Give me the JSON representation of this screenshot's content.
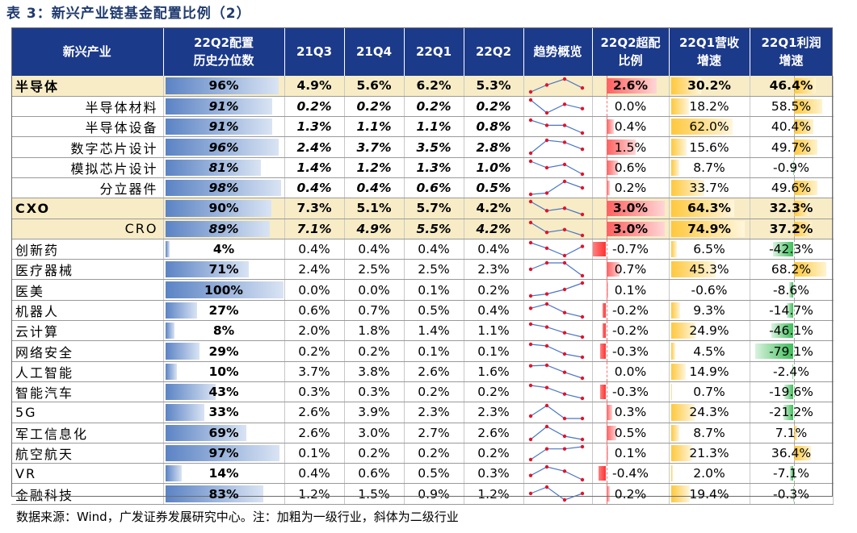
{
  "title": "表 3：新兴产业链基金配置比例（2）",
  "note": "数据来源：Wind，广发证券发展研究中心。注：加粗为一级行业，斜体为二级行业",
  "colors": {
    "header": "#1c3a8a",
    "highlight": "#f7ecc6",
    "pct_bar": "#5b83c4",
    "neg_bar": "#ff4d4d",
    "rev_bar": "#ffc83d",
    "profit_neg": "#3fbe5a",
    "line": "#4a76c8",
    "marker": "#e3132a"
  },
  "headers": {
    "industry": "新兴产业",
    "pct_line1": "22Q2配置",
    "pct_line2": "历史分位数",
    "q1": "21Q3",
    "q2": "21Q4",
    "q3": "22Q1",
    "q4": "22Q2",
    "trend": "趋势概览",
    "over_line1": "22Q2超配",
    "over_line2": "比例",
    "rev_line1": "22Q1营收",
    "rev_line2": "增速",
    "profit_line1": "22Q1利润",
    "profit_line2": "增速"
  },
  "rows": [
    {
      "name": "半导体",
      "level": 1,
      "hl": true,
      "pct": "96%",
      "pctv": 96,
      "q": [
        "4.9%",
        "5.6%",
        "6.2%",
        "5.3%"
      ],
      "qv": [
        4.9,
        5.6,
        6.2,
        5.3
      ],
      "over": "2.6%",
      "overv": 2.6,
      "rev": "30.2%",
      "revv": 30.2,
      "profit": "46.4%",
      "profitv": 46.4
    },
    {
      "name": "半导体材料",
      "level": 2,
      "hl": false,
      "pct": "91%",
      "pctv": 91,
      "q": [
        "0.2%",
        "0.2%",
        "0.2%",
        "0.2%"
      ],
      "qv": [
        0.24,
        0.18,
        0.22,
        0.2
      ],
      "over": "0.0%",
      "overv": 0.0,
      "rev": "18.2%",
      "revv": 18.2,
      "profit": "58.5%",
      "profitv": 58.5
    },
    {
      "name": "半导体设备",
      "level": 2,
      "hl": false,
      "pct": "91%",
      "pctv": 91,
      "q": [
        "1.3%",
        "1.1%",
        "1.1%",
        "0.8%"
      ],
      "qv": [
        1.3,
        1.1,
        1.1,
        0.8
      ],
      "over": "0.4%",
      "overv": 0.4,
      "rev": "62.0%",
      "revv": 62.0,
      "profit": "40.4%",
      "profitv": 40.4
    },
    {
      "name": "数字芯片设计",
      "level": 2,
      "hl": false,
      "pct": "96%",
      "pctv": 96,
      "q": [
        "2.4%",
        "3.7%",
        "3.5%",
        "2.8%"
      ],
      "qv": [
        2.4,
        3.7,
        3.5,
        2.8
      ],
      "over": "1.5%",
      "overv": 1.5,
      "rev": "15.6%",
      "revv": 15.6,
      "profit": "49.7%",
      "profitv": 49.7
    },
    {
      "name": "模拟芯片设计",
      "level": 2,
      "hl": false,
      "pct": "81%",
      "pctv": 81,
      "q": [
        "1.4%",
        "1.2%",
        "1.3%",
        "1.0%"
      ],
      "qv": [
        1.4,
        1.2,
        1.3,
        1.0
      ],
      "over": "0.6%",
      "overv": 0.6,
      "rev": "8.7%",
      "revv": 8.7,
      "profit": "-0.9%",
      "profitv": -0.9
    },
    {
      "name": "分立器件",
      "level": 2,
      "hl": false,
      "pct": "98%",
      "pctv": 98,
      "q": [
        "0.4%",
        "0.4%",
        "0.6%",
        "0.5%"
      ],
      "qv": [
        0.4,
        0.42,
        0.6,
        0.5
      ],
      "over": "0.2%",
      "overv": 0.2,
      "rev": "33.7%",
      "revv": 33.7,
      "profit": "49.6%",
      "profitv": 49.6
    },
    {
      "name": "CXO",
      "level": 1,
      "hl": true,
      "pct": "90%",
      "pctv": 90,
      "q": [
        "7.3%",
        "5.1%",
        "5.7%",
        "4.2%"
      ],
      "qv": [
        7.3,
        5.1,
        5.7,
        4.2
      ],
      "over": "3.0%",
      "overv": 3.0,
      "rev": "64.3%",
      "revv": 64.3,
      "profit": "32.3%",
      "profitv": 32.3
    },
    {
      "name": "CRO",
      "level": 2,
      "hl": true,
      "pct": "89%",
      "pctv": 89,
      "q": [
        "7.1%",
        "4.9%",
        "5.5%",
        "4.2%"
      ],
      "qv": [
        7.1,
        4.9,
        5.5,
        4.2
      ],
      "over": "3.0%",
      "overv": 3.0,
      "rev": "74.9%",
      "revv": 74.9,
      "profit": "37.2%",
      "profitv": 37.2
    },
    {
      "name": "创新药",
      "level": 1,
      "hl": false,
      "pct": "4%",
      "pctv": 4,
      "q": [
        "0.4%",
        "0.4%",
        "0.4%",
        "0.4%"
      ],
      "qv": [
        0.44,
        0.41,
        0.37,
        0.42
      ],
      "over": "-0.7%",
      "overv": -0.7,
      "rev": "6.5%",
      "revv": 6.5,
      "profit": "-42.3%",
      "profitv": -42.3
    },
    {
      "name": "医疗器械",
      "level": 1,
      "hl": false,
      "pct": "71%",
      "pctv": 71,
      "q": [
        "2.4%",
        "2.5%",
        "2.5%",
        "2.3%"
      ],
      "qv": [
        2.4,
        2.5,
        2.5,
        2.3
      ],
      "over": "0.7%",
      "overv": 0.7,
      "rev": "45.3%",
      "revv": 45.3,
      "profit": "68.2%",
      "profitv": 68.2
    },
    {
      "name": "医美",
      "level": 1,
      "hl": false,
      "pct": "100%",
      "pctv": 100,
      "q": [
        "0.0%",
        "0.0%",
        "0.1%",
        "0.2%"
      ],
      "qv": [
        0.0,
        0.03,
        0.1,
        0.2
      ],
      "over": "0.1%",
      "overv": 0.1,
      "rev": "-0.6%",
      "revv": -0.6,
      "profit": "-8.6%",
      "profitv": -8.6
    },
    {
      "name": "机器人",
      "level": 1,
      "hl": false,
      "pct": "27%",
      "pctv": 27,
      "q": [
        "0.6%",
        "0.7%",
        "0.5%",
        "0.4%"
      ],
      "qv": [
        0.6,
        0.7,
        0.5,
        0.4
      ],
      "over": "-0.2%",
      "overv": -0.2,
      "rev": "9.3%",
      "revv": 9.3,
      "profit": "-14.7%",
      "profitv": -14.7
    },
    {
      "name": "云计算",
      "level": 1,
      "hl": false,
      "pct": "8%",
      "pctv": 8,
      "q": [
        "2.0%",
        "1.8%",
        "1.4%",
        "1.1%"
      ],
      "qv": [
        2.0,
        1.8,
        1.4,
        1.1
      ],
      "over": "-0.2%",
      "overv": -0.2,
      "rev": "24.9%",
      "revv": 24.9,
      "profit": "-46.1%",
      "profitv": -46.1
    },
    {
      "name": "网络安全",
      "level": 1,
      "hl": false,
      "pct": "29%",
      "pctv": 29,
      "q": [
        "0.2%",
        "0.2%",
        "0.1%",
        "0.1%"
      ],
      "qv": [
        0.2,
        0.19,
        0.14,
        0.12
      ],
      "over": "-0.3%",
      "overv": -0.3,
      "rev": "4.5%",
      "revv": 4.5,
      "profit": "-79.1%",
      "profitv": -79.1
    },
    {
      "name": "人工智能",
      "level": 1,
      "hl": false,
      "pct": "10%",
      "pctv": 10,
      "q": [
        "3.7%",
        "3.8%",
        "2.6%",
        "1.6%"
      ],
      "qv": [
        3.7,
        3.8,
        2.6,
        1.6
      ],
      "over": "0.0%",
      "overv": 0.0,
      "rev": "14.9%",
      "revv": 14.9,
      "profit": "-2.4%",
      "profitv": -2.4
    },
    {
      "name": "智能汽车",
      "level": 1,
      "hl": false,
      "pct": "43%",
      "pctv": 43,
      "q": [
        "0.3%",
        "0.3%",
        "0.2%",
        "0.2%"
      ],
      "qv": [
        0.3,
        0.28,
        0.22,
        0.18
      ],
      "over": "-0.3%",
      "overv": -0.3,
      "rev": "0.7%",
      "revv": 0.7,
      "profit": "-19.6%",
      "profitv": -19.6
    },
    {
      "name": "5G",
      "level": 1,
      "hl": false,
      "pct": "33%",
      "pctv": 33,
      "q": [
        "2.6%",
        "3.9%",
        "2.3%",
        "2.3%"
      ],
      "qv": [
        2.6,
        3.9,
        2.3,
        2.3
      ],
      "over": "0.3%",
      "overv": 0.3,
      "rev": "24.3%",
      "revv": 24.3,
      "profit": "-21.2%",
      "profitv": -21.2
    },
    {
      "name": "军工信息化",
      "level": 1,
      "hl": false,
      "pct": "69%",
      "pctv": 69,
      "q": [
        "2.6%",
        "3.0%",
        "2.7%",
        "2.6%"
      ],
      "qv": [
        2.6,
        3.0,
        2.7,
        2.6
      ],
      "over": "0.5%",
      "overv": 0.5,
      "rev": "8.7%",
      "revv": 8.7,
      "profit": "7.1%",
      "profitv": 7.1
    },
    {
      "name": "航空航天",
      "level": 1,
      "hl": false,
      "pct": "97%",
      "pctv": 97,
      "q": [
        "0.1%",
        "0.2%",
        "0.2%",
        "0.2%"
      ],
      "qv": [
        0.1,
        0.2,
        0.2,
        0.22
      ],
      "over": "0.1%",
      "overv": 0.1,
      "rev": "21.3%",
      "revv": 21.3,
      "profit": "36.4%",
      "profitv": 36.4
    },
    {
      "name": "VR",
      "level": 1,
      "hl": false,
      "pct": "14%",
      "pctv": 14,
      "q": [
        "0.4%",
        "0.6%",
        "0.5%",
        "0.3%"
      ],
      "qv": [
        0.4,
        0.6,
        0.5,
        0.3
      ],
      "over": "-0.4%",
      "overv": -0.4,
      "rev": "2.0%",
      "revv": 2.0,
      "profit": "-7.1%",
      "profitv": -7.1
    },
    {
      "name": "金融科技",
      "level": 1,
      "hl": false,
      "pct": "83%",
      "pctv": 83,
      "q": [
        "1.2%",
        "1.5%",
        "0.9%",
        "1.2%"
      ],
      "qv": [
        1.2,
        1.5,
        0.9,
        1.2
      ],
      "over": "0.2%",
      "overv": 0.2,
      "rev": "19.4%",
      "revv": 19.4,
      "profit": "-0.3%",
      "profitv": -0.3
    }
  ]
}
